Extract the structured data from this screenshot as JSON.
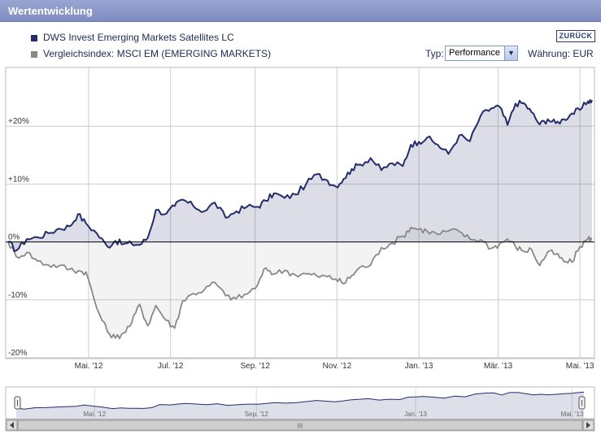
{
  "header": {
    "title": "Wertentwicklung"
  },
  "legend": [
    {
      "label": "DWS Invest Emerging Markets Satellites LC",
      "color": "#232d6b"
    },
    {
      "label": "Vergleichsindex: MSCI EM (EMERGING MARKETS)",
      "color": "#888888"
    }
  ],
  "back_button": {
    "label": "ZURÜCK"
  },
  "controls": {
    "typ_label": "Typ:",
    "typ_value": "Performance",
    "currency_label": "Währung: EUR"
  },
  "navigator": {
    "scroll_grip": "III"
  },
  "chart_data": {
    "type": "line",
    "title": "Wertentwicklung",
    "xlabel": "",
    "ylabel": "",
    "ylim": [
      -20,
      30
    ],
    "yticks": [
      {
        "v": 20,
        "label": "+20%"
      },
      {
        "v": 10,
        "label": "+10%"
      },
      {
        "v": 0,
        "label": "0%"
      },
      {
        "v": -10,
        "label": "-10%"
      },
      {
        "v": -20,
        "label": "-20%"
      }
    ],
    "xticks": [
      {
        "day": 60,
        "label": "Mai. '12"
      },
      {
        "day": 121,
        "label": "Jul. '12"
      },
      {
        "day": 184,
        "label": "Sep. '12"
      },
      {
        "day": 245,
        "label": "Nov. '12"
      },
      {
        "day": 306,
        "label": "Jan. '13"
      },
      {
        "day": 365,
        "label": "Mär. '13"
      },
      {
        "day": 426,
        "label": "Mai. '13"
      }
    ],
    "navigator_ticks": [
      {
        "day": 60,
        "label": "Mai. '12"
      },
      {
        "day": 184,
        "label": "Sep. '12"
      },
      {
        "day": 306,
        "label": "Jan. '13"
      },
      {
        "day": 426,
        "label": "Mai. '13"
      }
    ],
    "xlim": [
      0,
      435
    ],
    "series": [
      {
        "name": "DWS Invest Emerging Markets Satellites LC",
        "color": "#232d6b",
        "x": [
          0,
          6,
          14,
          22,
          30,
          38,
          46,
          52,
          58,
          66,
          74,
          80,
          86,
          92,
          98,
          104,
          110,
          118,
          124,
          130,
          138,
          146,
          154,
          162,
          170,
          178,
          186,
          192,
          198,
          206,
          214,
          222,
          230,
          238,
          244,
          250,
          256,
          262,
          270,
          278,
          286,
          294,
          300,
          306,
          312,
          320,
          328,
          336,
          344,
          352,
          360,
          366,
          372,
          378,
          384,
          390,
          396,
          402,
          408,
          414,
          420,
          426,
          432,
          435
        ],
        "y": [
          0,
          -1.5,
          0.5,
          0.8,
          1.5,
          2.3,
          2.7,
          4.8,
          3.2,
          1.5,
          -0.8,
          0.2,
          -0.4,
          -0.3,
          -0.5,
          0.7,
          5.5,
          4.9,
          6.2,
          7.3,
          6.2,
          5.3,
          6.8,
          4.2,
          5.3,
          6.1,
          6.1,
          7.1,
          8.4,
          7.6,
          8.2,
          10.0,
          11.7,
          10.6,
          9.6,
          10.9,
          12.6,
          13.4,
          14.5,
          12.4,
          13.6,
          13.1,
          16.8,
          17.3,
          18.0,
          16.8,
          15.2,
          18.4,
          17.4,
          21.8,
          23.1,
          23.4,
          20.2,
          23.9,
          24.0,
          22.4,
          20.3,
          21.2,
          20.5,
          21.2,
          22.2,
          22.8,
          24.3,
          24.5
        ]
      },
      {
        "name": "Vergleichsindex: MSCI EM (EMERGING MARKETS)",
        "color": "#888888",
        "x": [
          0,
          6,
          14,
          22,
          30,
          38,
          46,
          52,
          58,
          66,
          74,
          80,
          86,
          92,
          98,
          104,
          110,
          118,
          124,
          130,
          138,
          146,
          154,
          162,
          170,
          178,
          186,
          192,
          198,
          206,
          214,
          222,
          230,
          238,
          244,
          250,
          256,
          262,
          270,
          278,
          286,
          294,
          300,
          306,
          312,
          320,
          328,
          336,
          344,
          352,
          360,
          366,
          372,
          378,
          384,
          390,
          396,
          402,
          408,
          414,
          420,
          426,
          432,
          435
        ],
        "y": [
          0,
          -2.5,
          -1.8,
          -3.3,
          -4.0,
          -4.1,
          -4.7,
          -5.0,
          -5.2,
          -11.4,
          -15.5,
          -16.6,
          -15.7,
          -14.0,
          -10.8,
          -14.5,
          -11.0,
          -13.6,
          -14.9,
          -10.2,
          -8.9,
          -8.3,
          -7.0,
          -9.3,
          -9.8,
          -9.0,
          -7.4,
          -4.5,
          -5.5,
          -4.9,
          -5.7,
          -5.5,
          -5.9,
          -6.0,
          -6.4,
          -7.2,
          -5.8,
          -4.4,
          -4.0,
          -1.0,
          -0.2,
          1.0,
          2.5,
          2.2,
          1.9,
          1.3,
          1.9,
          1.8,
          0.5,
          0.4,
          -1.1,
          -0.4,
          0.5,
          -0.8,
          -1.6,
          -1.3,
          -4.1,
          -1.7,
          -2.1,
          -3.4,
          -3.5,
          -0.8,
          0.6,
          0.5
        ]
      }
    ]
  }
}
